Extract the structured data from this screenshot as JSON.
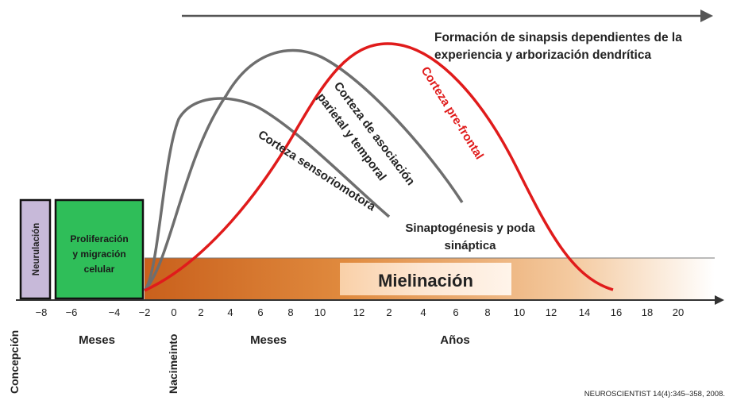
{
  "title_block": {
    "line1": "Formación de sinapsis dependientes de la",
    "line2": "experiencia y arborización dendrítica"
  },
  "boxes": {
    "neurulation": "Neurulación",
    "proliferation_line1": "Proliferación",
    "proliferation_line2": "y migración",
    "proliferation_line3": "celular"
  },
  "band": {
    "myelination": "Mielinación"
  },
  "curves": {
    "sensorimotor": "Corteza sensoriomotora",
    "association_line1": "Corteza de asociación",
    "association_line2": "parietal y temporal",
    "prefrontal": "Corteza pre-frontal"
  },
  "synapto": {
    "line1": "Sinaptogénesis y poda",
    "line2": "sináptica"
  },
  "axis": {
    "ticks": [
      "−8",
      "−6",
      "−4",
      "−2",
      "0",
      "2",
      "4",
      "6",
      "8",
      "10",
      "12",
      "2",
      "4",
      "6",
      "8",
      "10",
      "12",
      "14",
      "16",
      "18",
      "20"
    ],
    "unit_months_prenatal": "Meses",
    "unit_months_postnatal": "Meses",
    "unit_years": "Años",
    "conception": "Concepción",
    "birth": "Nacimeinto"
  },
  "citation": "NEUROSCIENTIST 14(4):345–358,  2008.",
  "colors": {
    "neurulation_fill": "#c7b9d9",
    "proliferation_fill": "#2fbe59",
    "band_orange": "#d2691e",
    "prefrontal_red": "#e01b1b",
    "curve_gray": "#6e6e6e"
  }
}
